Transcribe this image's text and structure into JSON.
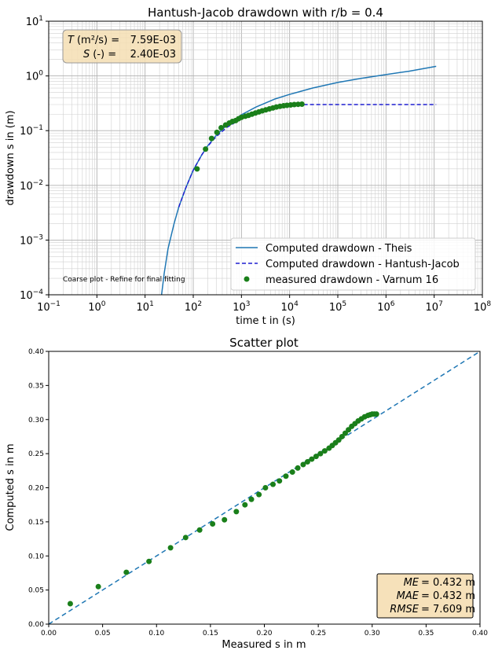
{
  "chart_data": [
    {
      "type": "line",
      "title": "Hantush-Jacob drawdown with r/b = 0.4",
      "xlabel": "time t in (s)",
      "ylabel": "drawdown s in (m)",
      "xscale": "log",
      "yscale": "log",
      "xlim": [
        0.1,
        100000000
      ],
      "ylim": [
        0.0001,
        10
      ],
      "x_ticks": [
        {
          "value": 0.1,
          "base": "10",
          "exp": "−1"
        },
        {
          "value": 1,
          "base": "10",
          "exp": "0"
        },
        {
          "value": 10,
          "base": "10",
          "exp": "1"
        },
        {
          "value": 100,
          "base": "10",
          "exp": "2"
        },
        {
          "value": 1000,
          "base": "10",
          "exp": "3"
        },
        {
          "value": 10000,
          "base": "10",
          "exp": "4"
        },
        {
          "value": 100000,
          "base": "10",
          "exp": "5"
        },
        {
          "value": 1000000,
          "base": "10",
          "exp": "6"
        },
        {
          "value": 10000000,
          "base": "10",
          "exp": "7"
        },
        {
          "value": 100000000,
          "base": "10",
          "exp": "8"
        }
      ],
      "y_ticks": [
        {
          "value": 0.0001,
          "base": "10",
          "exp": "−4"
        },
        {
          "value": 0.001,
          "base": "10",
          "exp": "−3"
        },
        {
          "value": 0.01,
          "base": "10",
          "exp": "−2"
        },
        {
          "value": 0.1,
          "base": "10",
          "exp": "−1"
        },
        {
          "value": 1,
          "base": "10",
          "exp": "0"
        },
        {
          "value": 10,
          "base": "10",
          "exp": "1"
        }
      ],
      "grid": true,
      "grid_minor": true,
      "legend_position": "lower-right",
      "series": [
        {
          "name": "Computed drawdown - Theis",
          "style": "line",
          "color": "#1f77b4",
          "x": [
            22,
            25,
            30,
            40,
            50,
            70,
            100,
            150,
            200,
            300,
            500,
            1000,
            2000,
            5000,
            10000,
            30000,
            100000,
            300000,
            1000000,
            3000000,
            11000000
          ],
          "y": [
            0.0001,
            0.00025,
            0.0007,
            0.002,
            0.004,
            0.009,
            0.019,
            0.036,
            0.053,
            0.082,
            0.127,
            0.195,
            0.27,
            0.38,
            0.46,
            0.6,
            0.76,
            0.9,
            1.06,
            1.22,
            1.5
          ]
        },
        {
          "name": "Computed drawdown - Hantush-Jacob",
          "style": "dashed",
          "color": "#1f1fd0",
          "x": [
            50,
            70,
            100,
            150,
            200,
            300,
            500,
            1000,
            2000,
            5000,
            10000,
            20000,
            100000,
            1000000,
            11000000
          ],
          "y": [
            0.004,
            0.009,
            0.019,
            0.036,
            0.052,
            0.078,
            0.115,
            0.165,
            0.215,
            0.265,
            0.29,
            0.3,
            0.3,
            0.3,
            0.3
          ]
        },
        {
          "name": "measured drawdown - Varnum 16",
          "style": "markers",
          "color": "#1a7f1a",
          "x": [
            120,
            180,
            240,
            310,
            380,
            470,
            560,
            650,
            760,
            870,
            1000,
            1200,
            1400,
            1650,
            1950,
            2300,
            2700,
            3200,
            3800,
            4500,
            5300,
            6300,
            7500,
            8800,
            10500,
            12500,
            15000,
            18000
          ],
          "y": [
            0.02,
            0.046,
            0.072,
            0.093,
            0.113,
            0.127,
            0.138,
            0.147,
            0.153,
            0.165,
            0.175,
            0.183,
            0.19,
            0.2,
            0.21,
            0.22,
            0.23,
            0.24,
            0.25,
            0.26,
            0.27,
            0.278,
            0.285,
            0.29,
            0.295,
            0.3,
            0.303,
            0.305
          ]
        }
      ],
      "parameters": {
        "t_label": "T",
        "t_unit": "(m²/s) =",
        "t_value": "7.59E-03",
        "s_label": "S",
        "s_unit": "(-) =",
        "s_value": "2.40E-03"
      },
      "note": "Coarse plot - Refine for final fitting"
    },
    {
      "type": "scatter",
      "title": "Scatter plot",
      "xlabel": "Measured s in m",
      "ylabel": "Computed s in m",
      "xlim": [
        0,
        0.4
      ],
      "ylim": [
        0,
        0.4
      ],
      "x_ticks": [
        "0.00",
        "0.05",
        "0.10",
        "0.15",
        "0.20",
        "0.25",
        "0.30",
        "0.35",
        "0.40"
      ],
      "y_ticks": [
        "0.00",
        "0.05",
        "0.10",
        "0.15",
        "0.20",
        "0.25",
        "0.30",
        "0.35",
        "0.40"
      ],
      "grid": false,
      "reference_line": {
        "style": "dashed",
        "color": "#1f77b4",
        "from": [
          0,
          0
        ],
        "to": [
          0.4,
          0.4
        ]
      },
      "series": [
        {
          "color": "#1a7f1a",
          "x": [
            0.02,
            0.046,
            0.072,
            0.093,
            0.113,
            0.127,
            0.14,
            0.152,
            0.163,
            0.174,
            0.182,
            0.188,
            0.195,
            0.201,
            0.208,
            0.214,
            0.22,
            0.226,
            0.231,
            0.236,
            0.24,
            0.244,
            0.248,
            0.252,
            0.256,
            0.26,
            0.263,
            0.266,
            0.269,
            0.272,
            0.275,
            0.278,
            0.281,
            0.284,
            0.287,
            0.29,
            0.293,
            0.296,
            0.298,
            0.3,
            0.302,
            0.304
          ],
          "y": [
            0.03,
            0.055,
            0.076,
            0.092,
            0.112,
            0.127,
            0.138,
            0.147,
            0.153,
            0.165,
            0.175,
            0.183,
            0.19,
            0.2,
            0.205,
            0.21,
            0.217,
            0.223,
            0.229,
            0.234,
            0.238,
            0.242,
            0.246,
            0.25,
            0.254,
            0.258,
            0.262,
            0.266,
            0.27,
            0.275,
            0.28,
            0.285,
            0.29,
            0.294,
            0.298,
            0.301,
            0.304,
            0.306,
            0.307,
            0.308,
            0.308,
            0.308
          ]
        }
      ],
      "stats": [
        {
          "name": "ME",
          "value": "= 0.432 m"
        },
        {
          "name": "MAE",
          "value": "= 0.432 m"
        },
        {
          "name": "RMSE",
          "value": "= 7.609 m"
        }
      ],
      "legend_position": "lower-right"
    }
  ]
}
